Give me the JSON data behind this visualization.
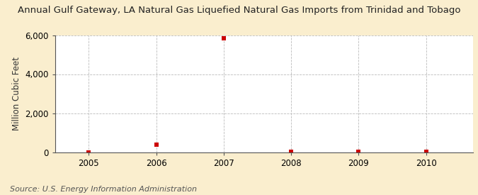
{
  "title": "Annual Gulf Gateway, LA Natural Gas Liquefied Natural Gas Imports from Trinidad and Tobago",
  "ylabel": "Million Cubic Feet",
  "source": "Source: U.S. Energy Information Administration",
  "background_color": "#faeece",
  "plot_background_color": "#ffffff",
  "x_values": [
    2005,
    2006,
    2007,
    2008,
    2009,
    2010
  ],
  "y_values": [
    0,
    390,
    5840,
    5,
    5,
    5
  ],
  "xlim": [
    2004.5,
    2010.7
  ],
  "ylim": [
    0,
    6000
  ],
  "yticks": [
    0,
    2000,
    4000,
    6000
  ],
  "xticks": [
    2005,
    2006,
    2007,
    2008,
    2009,
    2010
  ],
  "marker_color": "#cc0000",
  "marker_style": "s",
  "marker_size": 4,
  "grid_color": "#bbbbbb",
  "title_fontsize": 9.5,
  "axis_fontsize": 8.5,
  "source_fontsize": 8.0
}
